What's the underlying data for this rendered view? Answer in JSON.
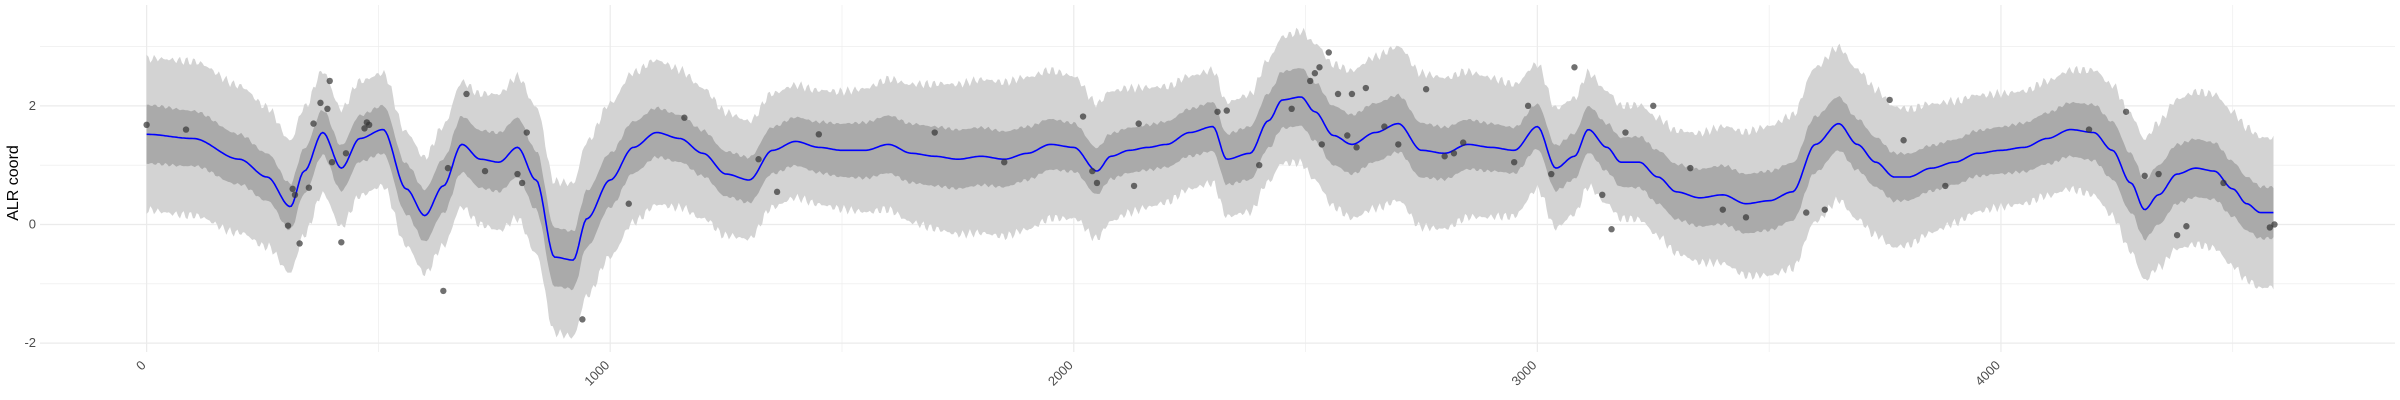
{
  "chart_data": {
    "type": "line",
    "title": "",
    "xlabel": "",
    "ylabel": "ALR coord",
    "xlim": [
      -230,
      4850
    ],
    "ylim": [
      -2.15,
      3.7
    ],
    "grid": true,
    "legend": "none",
    "x_ticks": [
      0,
      1000,
      2000,
      3000,
      4000
    ],
    "x_tick_labels": [
      "0",
      "1000",
      "2000",
      "3000",
      "4000"
    ],
    "y_ticks": [
      -2,
      0,
      2
    ],
    "y_tick_labels": [
      "-2",
      "0",
      "2"
    ],
    "colors": {
      "mean_line": "#0000ff",
      "inner_band": "#aaaaaa",
      "outer_band": "#d3d3d3",
      "points": "#333333",
      "grid": "#ebebeb"
    },
    "series": [
      {
        "role": "mean",
        "x": [
          0,
          100,
          200,
          260,
          310,
          340,
          380,
          420,
          460,
          510,
          560,
          600,
          640,
          680,
          720,
          760,
          800,
          840,
          880,
          920,
          950,
          1000,
          1050,
          1100,
          1150,
          1200,
          1250,
          1300,
          1350,
          1400,
          1450,
          1500,
          1550,
          1600,
          1650,
          1700,
          1750,
          1800,
          1850,
          1900,
          1950,
          2000,
          2050,
          2080,
          2120,
          2160,
          2200,
          2250,
          2300,
          2330,
          2380,
          2420,
          2450,
          2490,
          2520,
          2560,
          2600,
          2650,
          2700,
          2750,
          2800,
          2850,
          2900,
          2950,
          3000,
          3040,
          3080,
          3110,
          3150,
          3180,
          3220,
          3260,
          3300,
          3350,
          3400,
          3450,
          3500,
          3550,
          3600,
          3650,
          3690,
          3730,
          3770,
          3800,
          3850,
          3900,
          3950,
          4000,
          4050,
          4100,
          4150,
          4200,
          4240,
          4280,
          4310,
          4340,
          4380,
          4420,
          4460,
          4500,
          4530,
          4560,
          4590
        ],
        "y": [
          1.52,
          1.45,
          1.1,
          0.8,
          0.3,
          0.9,
          1.55,
          0.95,
          1.45,
          1.6,
          0.6,
          0.15,
          0.65,
          1.35,
          1.1,
          1.05,
          1.3,
          0.75,
          -0.55,
          -0.6,
          0.1,
          0.75,
          1.3,
          1.55,
          1.45,
          1.2,
          0.85,
          0.75,
          1.25,
          1.4,
          1.3,
          1.25,
          1.25,
          1.35,
          1.2,
          1.15,
          1.1,
          1.15,
          1.1,
          1.2,
          1.35,
          1.3,
          0.9,
          1.15,
          1.25,
          1.3,
          1.35,
          1.55,
          1.65,
          1.1,
          1.2,
          1.75,
          2.1,
          2.15,
          1.9,
          1.5,
          1.35,
          1.55,
          1.7,
          1.25,
          1.2,
          1.35,
          1.3,
          1.25,
          1.65,
          0.95,
          1.15,
          1.6,
          1.3,
          1.05,
          1.05,
          0.8,
          0.55,
          0.45,
          0.5,
          0.35,
          0.4,
          0.55,
          1.35,
          1.7,
          1.35,
          1.05,
          0.8,
          0.8,
          0.95,
          1.05,
          1.2,
          1.25,
          1.3,
          1.45,
          1.6,
          1.55,
          1.25,
          0.7,
          0.25,
          0.5,
          0.85,
          0.95,
          0.9,
          0.6,
          0.35,
          0.2,
          0.2
        ]
      }
    ],
    "points": [
      [
        0,
        1.68
      ],
      [
        85,
        1.6
      ],
      [
        305,
        -0.02
      ],
      [
        315,
        0.6
      ],
      [
        320,
        0.5
      ],
      [
        330,
        -0.32
      ],
      [
        350,
        0.62
      ],
      [
        360,
        1.7
      ],
      [
        375,
        2.05
      ],
      [
        390,
        1.95
      ],
      [
        395,
        2.42
      ],
      [
        400,
        1.05
      ],
      [
        420,
        -0.3
      ],
      [
        430,
        1.2
      ],
      [
        470,
        1.62
      ],
      [
        475,
        1.72
      ],
      [
        480,
        1.68
      ],
      [
        640,
        -1.12
      ],
      [
        650,
        0.95
      ],
      [
        690,
        2.2
      ],
      [
        730,
        0.9
      ],
      [
        800,
        0.85
      ],
      [
        810,
        0.7
      ],
      [
        820,
        1.55
      ],
      [
        940,
        -1.6
      ],
      [
        1040,
        0.35
      ],
      [
        1160,
        1.8
      ],
      [
        1320,
        1.1
      ],
      [
        1360,
        0.55
      ],
      [
        1450,
        1.52
      ],
      [
        1700,
        1.55
      ],
      [
        1850,
        1.05
      ],
      [
        2020,
        1.82
      ],
      [
        2040,
        0.9
      ],
      [
        2050,
        0.7
      ],
      [
        2130,
        0.65
      ],
      [
        2140,
        1.7
      ],
      [
        2310,
        1.9
      ],
      [
        2330,
        1.92
      ],
      [
        2400,
        1.0
      ],
      [
        2470,
        1.95
      ],
      [
        2510,
        2.42
      ],
      [
        2520,
        2.55
      ],
      [
        2530,
        2.65
      ],
      [
        2535,
        1.35
      ],
      [
        2550,
        2.9
      ],
      [
        2570,
        2.2
      ],
      [
        2590,
        1.5
      ],
      [
        2600,
        2.2
      ],
      [
        2610,
        1.3
      ],
      [
        2630,
        2.3
      ],
      [
        2670,
        1.65
      ],
      [
        2700,
        1.35
      ],
      [
        2760,
        2.28
      ],
      [
        2800,
        1.15
      ],
      [
        2820,
        1.2
      ],
      [
        2840,
        1.38
      ],
      [
        2950,
        1.05
      ],
      [
        2980,
        2.0
      ],
      [
        3030,
        0.85
      ],
      [
        3080,
        2.65
      ],
      [
        3140,
        0.5
      ],
      [
        3160,
        -0.08
      ],
      [
        3190,
        1.55
      ],
      [
        3250,
        2.0
      ],
      [
        3330,
        0.95
      ],
      [
        3400,
        0.25
      ],
      [
        3450,
        0.12
      ],
      [
        3580,
        0.2
      ],
      [
        3620,
        0.25
      ],
      [
        3760,
        2.1
      ],
      [
        3790,
        1.42
      ],
      [
        3880,
        0.65
      ],
      [
        4190,
        1.6
      ],
      [
        4270,
        1.9
      ],
      [
        4310,
        0.82
      ],
      [
        4340,
        0.85
      ],
      [
        4380,
        -0.18
      ],
      [
        4400,
        -0.03
      ],
      [
        4480,
        0.7
      ],
      [
        4580,
        -0.05
      ],
      [
        4590,
        0.0
      ]
    ]
  }
}
